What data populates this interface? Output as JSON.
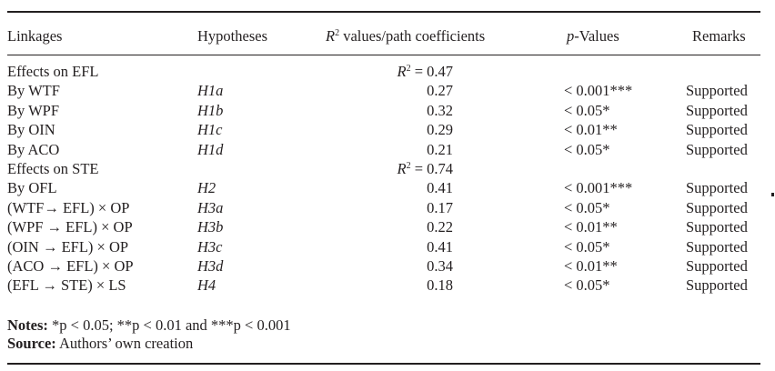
{
  "header": {
    "linkages": "Linkages",
    "hypotheses": "Hypotheses",
    "r2_label_pre": "R",
    "r2_label_sup": "2",
    "r2_label_post": " values/path coefficients",
    "pvalues_italic": "p",
    "pvalues_rest": "-Values",
    "remarks": "Remarks"
  },
  "groups": [
    {
      "label": "Effects on EFL",
      "r2": "R",
      "r2_sup": "2",
      "r2_value": " = 0.47",
      "rows": [
        {
          "linkage": "By WTF",
          "hypothesis": "H1a",
          "coefficient": "0.27",
          "pvalue": "< 0.001***",
          "remark": "Supported"
        },
        {
          "linkage": "By WPF",
          "hypothesis": "H1b",
          "coefficient": "0.32",
          "pvalue": "< 0.05*",
          "remark": "Supported"
        },
        {
          "linkage": "By OIN",
          "hypothesis": "H1c",
          "coefficient": "0.29",
          "pvalue": "< 0.01**",
          "remark": "Supported"
        },
        {
          "linkage": "By ACO",
          "hypothesis": "H1d",
          "coefficient": "0.21",
          "pvalue": "< 0.05*",
          "remark": "Supported"
        }
      ]
    },
    {
      "label": "Effects on STE",
      "r2": "R",
      "r2_sup": "2",
      "r2_value": " = 0.74",
      "rows": [
        {
          "linkage": "By OFL",
          "hypothesis": "H2",
          "coefficient": "0.41",
          "pvalue": "< 0.001***",
          "remark": "Supported"
        },
        {
          "linkage": "(WTF→ EFL) × OP",
          "hypothesis": "H3a",
          "coefficient": "0.17",
          "pvalue": "< 0.05*",
          "remark": "Supported"
        },
        {
          "linkage": "(WPF → EFL) × OP",
          "hypothesis": "H3b",
          "coefficient": "0.22",
          "pvalue": "< 0.01**",
          "remark": "Supported"
        },
        {
          "linkage": "(OIN → EFL) × OP",
          "hypothesis": "H3c",
          "coefficient": "0.41",
          "pvalue": "< 0.05*",
          "remark": "Supported"
        },
        {
          "linkage": "(ACO → EFL) × OP",
          "hypothesis": "H3d",
          "coefficient": "0.34",
          "pvalue": "< 0.01**",
          "remark": "Supported"
        },
        {
          "linkage": "(EFL → STE) × LS",
          "hypothesis": "H4",
          "coefficient": "0.18",
          "pvalue": "< 0.05*",
          "remark": "Supported"
        }
      ]
    }
  ],
  "notes": {
    "notes_label": "Notes:",
    "notes_text": " *p < 0.05; **p < 0.01 and ***p < 0.001",
    "source_label": "Source:",
    "source_text": " Authors’ own creation"
  }
}
